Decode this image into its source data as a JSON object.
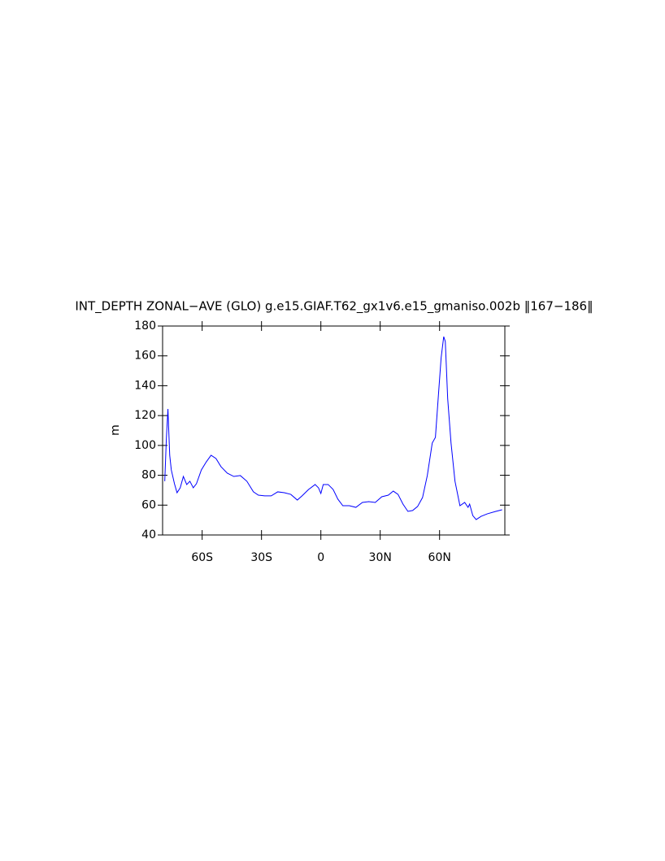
{
  "chart_data": {
    "type": "line",
    "title": "INT_DEPTH ZONAL−AVE (GLO) g.e15.GIAF.T62_gx1v6.e15_gmaniso.002b ‖167−186‖",
    "ylabel": "m",
    "x": [
      -78.9,
      -78.1,
      -77.3,
      -76.4,
      -75.6,
      -74,
      -72.7,
      -71.1,
      -69.5,
      -67.8,
      -66.2,
      -64.5,
      -62.9,
      -60.4,
      -57.9,
      -55.5,
      -53,
      -50.5,
      -47.3,
      -44,
      -40.7,
      -37.4,
      -34.1,
      -31.6,
      -28.4,
      -25.1,
      -21.8,
      -18.5,
      -15.2,
      -11.9,
      -9.5,
      -6.2,
      -2.9,
      -1.2,
      0,
      1.2,
      3.7,
      6.2,
      8.6,
      11.1,
      14.4,
      17.7,
      21,
      24.2,
      27.5,
      30.8,
      34.1,
      36.6,
      39,
      41.5,
      44,
      46.4,
      48.9,
      51.4,
      53.8,
      56.3,
      57.9,
      59.6,
      60.8,
      62.1,
      62.9,
      64.1,
      65.8,
      67.8,
      70.3,
      72.7,
      74.4,
      75.2,
      76.8,
      78.5,
      81,
      84.2,
      88.4,
      91.6
    ],
    "series": [
      {
        "name": "INT_DEPTH",
        "color": "#0000ff",
        "values": [
          76,
          104.3,
          124.4,
          93.4,
          83.6,
          74.3,
          68.3,
          71.6,
          79.2,
          73.8,
          76,
          71.6,
          74.3,
          83.6,
          89,
          93.4,
          91.2,
          85.8,
          81.4,
          79.2,
          79.8,
          76,
          68.9,
          66.7,
          66.2,
          66.2,
          68.9,
          68.3,
          67.2,
          63.4,
          66.2,
          70.5,
          73.8,
          71.6,
          67.8,
          73.8,
          73.8,
          70.5,
          64,
          59.6,
          59.6,
          58.5,
          61.8,
          62.3,
          61.8,
          65.6,
          66.7,
          69.4,
          67.2,
          60.7,
          55.8,
          56.4,
          59.1,
          65.1,
          79.8,
          101.6,
          105.4,
          137,
          158.8,
          172.9,
          169.7,
          131.5,
          101.6,
          76,
          59.6,
          61.8,
          58.5,
          60.7,
          53,
          50.3,
          52.5,
          54.2,
          55.8,
          56.9
        ]
      }
    ],
    "xlim": [
      -80,
      93
    ],
    "xticks": [
      {
        "value": -60,
        "label": "60S"
      },
      {
        "value": -30,
        "label": "30S"
      },
      0,
      {
        "value": 30,
        "label": "30N"
      },
      {
        "value": 60,
        "label": "60N"
      }
    ],
    "ylim": [
      40,
      180
    ],
    "yticks": [
      40,
      60,
      80,
      100,
      120,
      140,
      160,
      180
    ]
  }
}
